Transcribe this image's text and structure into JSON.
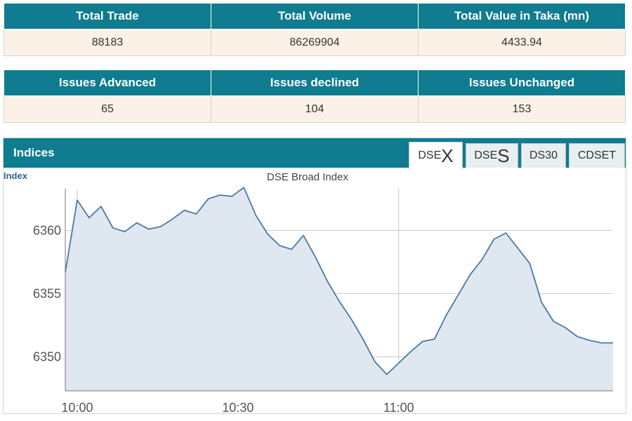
{
  "market_stats": {
    "headers": [
      "Total Trade",
      "Total Volume",
      "Total Value in Taka (mn)"
    ],
    "values": [
      "88183",
      "86269904",
      "4433.94"
    ]
  },
  "issues_stats": {
    "headers": [
      "Issues Advanced",
      "Issues declined",
      "Issues Unchanged"
    ],
    "values": [
      "65",
      "104",
      "153"
    ]
  },
  "indices": {
    "title": "Indices",
    "tabs": [
      {
        "prefix": "DSE",
        "suffix": "X",
        "active": true
      },
      {
        "prefix": "DSE",
        "suffix": "S",
        "active": false
      },
      {
        "prefix": "DS30",
        "suffix": "",
        "active": false
      },
      {
        "prefix": "CDSET",
        "suffix": "",
        "active": false
      }
    ]
  },
  "colors": {
    "header_bg": "#0f7c8f",
    "cell_bg": "#fcf1e6",
    "line": "#4a78a8",
    "area_fill": "#dfe8f1"
  },
  "chart_data": {
    "type": "area",
    "title": "DSE Broad Index",
    "ylabel": "Index",
    "xlabel": "",
    "x_ticks": [
      "10:00",
      "10:30",
      "11:00"
    ],
    "y_ticks": [
      6350,
      6355,
      6360
    ],
    "ylim": [
      6347.3,
      6363.3
    ],
    "xlim": [
      0,
      92
    ],
    "grid": true,
    "series": [
      {
        "x": [
          0,
          2,
          4,
          6,
          8,
          10,
          12,
          14,
          16,
          18,
          20,
          22,
          24,
          26,
          28,
          30,
          32,
          34,
          36,
          38,
          40,
          42,
          44,
          46,
          48,
          50,
          52,
          54,
          56,
          58,
          60,
          62,
          64,
          66,
          68,
          70,
          72,
          74,
          76,
          78,
          80,
          82,
          84,
          86,
          88,
          90,
          92
        ],
        "values": [
          6356.7,
          6362.4,
          6361.0,
          6361.9,
          6360.2,
          6359.9,
          6360.6,
          6360.1,
          6360.3,
          6360.9,
          6361.6,
          6361.3,
          6362.5,
          6362.8,
          6362.7,
          6363.4,
          6361.2,
          6359.7,
          6358.8,
          6358.5,
          6359.6,
          6357.9,
          6356.0,
          6354.4,
          6353.0,
          6351.4,
          6349.6,
          6348.6,
          6349.5,
          6350.4,
          6351.2,
          6351.4,
          6353.3,
          6354.9,
          6356.5,
          6357.7,
          6359.3,
          6359.8,
          6358.6,
          6357.4,
          6354.3,
          6352.8,
          6352.3,
          6351.6,
          6351.3,
          6351.1,
          6351.1
        ]
      }
    ]
  }
}
